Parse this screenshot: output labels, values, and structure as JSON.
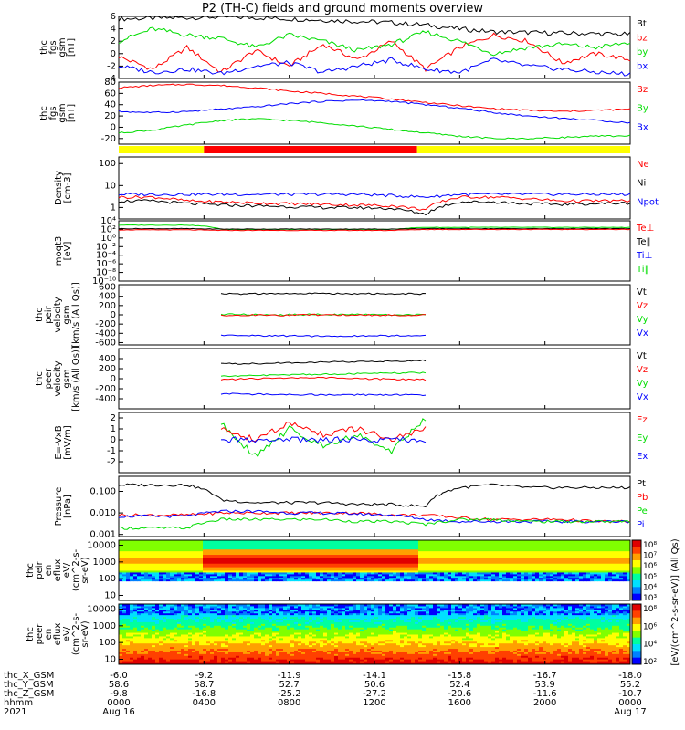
{
  "title": "P2 (TH-C) fields and ground moments overview",
  "colors": {
    "black": "#000000",
    "red": "#ff0000",
    "green": "#00dd00",
    "blue": "#0000ff",
    "yellow": "#ffff00"
  },
  "chart_data": [
    {
      "type": "line",
      "ylabel": [
        "thc",
        "fgs",
        "gsm",
        "[nT]"
      ],
      "ylim": [
        -4,
        6
      ],
      "yticks": [
        "6",
        "4",
        "2",
        "0",
        "-2",
        "-4"
      ],
      "legend": [
        {
          "label": "Bt",
          "color": "#000000"
        },
        {
          "label": "bz",
          "color": "#ff0000"
        },
        {
          "label": "by",
          "color": "#00dd00"
        },
        {
          "label": "bx",
          "color": "#0000ff"
        }
      ],
      "series": [
        {
          "color": "#000000",
          "values": [
            5.6,
            5.7,
            5.8,
            5.9,
            5.8,
            5.6,
            5.4,
            5.2,
            5.0,
            4.6,
            4.0,
            3.5,
            3.4,
            3.3,
            3.2,
            3.1
          ]
        },
        {
          "color": "#ff0000",
          "values": [
            -0.5,
            -2.5,
            1.0,
            -3.0,
            0.5,
            -2.0,
            1.5,
            -1.0,
            2.0,
            -2.5,
            1.0,
            3.0,
            2.0,
            -1.5,
            0.0,
            -1.0
          ]
        },
        {
          "color": "#00dd00",
          "values": [
            2.0,
            4.0,
            3.0,
            2.5,
            1.0,
            3.0,
            2.0,
            0.5,
            1.5,
            3.5,
            2.0,
            0.0,
            1.0,
            1.5,
            1.0,
            1.8
          ]
        },
        {
          "color": "#0000ff",
          "values": [
            -2.0,
            -3.0,
            -2.5,
            -3.2,
            -2.0,
            -1.5,
            -3.0,
            -2.0,
            -1.0,
            -2.5,
            -3.0,
            -1.0,
            -2.0,
            -2.5,
            -3.0,
            -3.3
          ]
        }
      ]
    },
    {
      "type": "line",
      "ylabel": [
        "thc",
        "fgs",
        "gsm",
        "[nT]"
      ],
      "ylim": [
        -30,
        80
      ],
      "yticks": [
        "80",
        "60",
        "40",
        "20",
        "0",
        "-20"
      ],
      "legend": [
        {
          "label": "Bz",
          "color": "#ff0000"
        },
        {
          "label": "By",
          "color": "#00dd00"
        },
        {
          "label": "Bx",
          "color": "#0000ff"
        }
      ],
      "series": [
        {
          "color": "#ff0000",
          "values": [
            70,
            74,
            76,
            74,
            70,
            64,
            60,
            55,
            50,
            44,
            38,
            33,
            30,
            28,
            30,
            32
          ]
        },
        {
          "color": "#00dd00",
          "values": [
            -10,
            -5,
            4,
            12,
            15,
            12,
            8,
            2,
            -4,
            -10,
            -16,
            -20,
            -20,
            -18,
            -16,
            -15
          ]
        },
        {
          "color": "#0000ff",
          "values": [
            28,
            26,
            28,
            32,
            36,
            42,
            46,
            48,
            46,
            40,
            34,
            26,
            20,
            16,
            12,
            8
          ]
        }
      ]
    },
    {
      "type": "heatmap",
      "name": "mode-bar",
      "segments": [
        {
          "from": "0000",
          "to": "0400",
          "color": "#ffff00"
        },
        {
          "from": "0400",
          "to": "1400",
          "color": "#ff0000"
        },
        {
          "from": "1400",
          "to": "0000",
          "color": "#ffff00"
        }
      ]
    },
    {
      "type": "line",
      "yscale": "log",
      "ylabel": [
        "Density",
        "[cm-3]"
      ],
      "ylim": [
        0.3,
        200
      ],
      "yticks": [
        "100",
        "10",
        "1"
      ],
      "legend": [
        {
          "label": "Ne",
          "color": "#ff0000"
        },
        {
          "label": "Ni",
          "color": "#000000"
        },
        {
          "label": "Npot",
          "color": "#0000ff"
        }
      ],
      "series": [
        {
          "color": "#0000ff",
          "values": [
            4,
            4,
            4,
            4,
            4,
            4,
            4,
            4,
            3.5,
            3,
            4,
            4,
            4,
            4,
            4,
            4
          ]
        },
        {
          "color": "#ff0000",
          "values": [
            3,
            3,
            2,
            1.8,
            1.6,
            1.5,
            1.4,
            1.3,
            1.2,
            0.8,
            3,
            3,
            2.5,
            2,
            2,
            2
          ]
        },
        {
          "color": "#000000",
          "values": [
            2,
            2,
            1.5,
            1.3,
            1.2,
            1.1,
            1.0,
            1.0,
            0.9,
            0.5,
            1.8,
            1.8,
            1.5,
            1.4,
            1.5,
            1.6
          ]
        }
      ]
    },
    {
      "type": "line",
      "yscale": "log",
      "ylabel": [
        "moqt3",
        "[eV]"
      ],
      "ylim": [
        1e-10,
        10000.0
      ],
      "yticks": [
        "10⁴",
        "10²",
        "10⁰",
        "10⁻²",
        "10⁻⁴",
        "10⁻⁶",
        "10⁻⁸",
        "10⁻¹⁰"
      ],
      "legend": [
        {
          "label": "Te⊥",
          "color": "#ff0000"
        },
        {
          "label": "Te‖",
          "color": "#000000"
        },
        {
          "label": "Ti⊥",
          "color": "#0000ff"
        },
        {
          "label": "Ti‖",
          "color": "#00dd00"
        }
      ],
      "series": [
        {
          "color": "#00dd00",
          "values": [
            1000,
            1000,
            1000,
            100,
            100,
            100,
            100,
            100,
            100,
            300,
            300,
            300,
            300,
            300,
            300,
            300
          ]
        },
        {
          "color": "#000000",
          "values": [
            150,
            150,
            150,
            120,
            120,
            120,
            120,
            120,
            120,
            150,
            150,
            150,
            150,
            150,
            150,
            150
          ]
        },
        {
          "color": "#ff0000",
          "values": [
            80,
            80,
            80,
            60,
            60,
            60,
            60,
            60,
            60,
            100,
            100,
            100,
            100,
            100,
            100,
            100
          ]
        }
      ]
    },
    {
      "type": "line",
      "ylabel": [
        "thc",
        "peir",
        "velocity",
        "gsm",
        "[km/s (All Qs)]"
      ],
      "ylim": [
        -650,
        650
      ],
      "yticks": [
        "600",
        "400",
        "200",
        "0",
        "-200",
        "-400",
        "-600"
      ],
      "legend": [
        {
          "label": "Vt",
          "color": "#000000"
        },
        {
          "label": "Vz",
          "color": "#ff0000"
        },
        {
          "label": "Vy",
          "color": "#00dd00"
        },
        {
          "label": "Vx",
          "color": "#0000ff"
        }
      ],
      "series": [
        {
          "color": "#000000",
          "values": [
            null,
            null,
            null,
            450,
            450,
            455,
            460,
            455,
            450,
            450,
            null,
            null,
            null,
            null,
            null,
            null
          ]
        },
        {
          "color": "#00dd00",
          "values": [
            null,
            null,
            null,
            10,
            5,
            0,
            10,
            5,
            0,
            5,
            null,
            null,
            null,
            null,
            null,
            null
          ]
        },
        {
          "color": "#ff0000",
          "values": [
            null,
            null,
            null,
            -10,
            -5,
            -10,
            0,
            -5,
            -10,
            -5,
            null,
            null,
            null,
            null,
            null,
            null
          ]
        },
        {
          "color": "#0000ff",
          "values": [
            null,
            null,
            null,
            -450,
            -450,
            -455,
            -460,
            -455,
            -450,
            -450,
            null,
            null,
            null,
            null,
            null,
            null
          ]
        }
      ]
    },
    {
      "type": "line",
      "ylabel": [
        "thc",
        "peer",
        "velocity",
        "gsm",
        "[km/s (All Qs)]"
      ],
      "ylim": [
        -600,
        600
      ],
      "yticks": [
        "400",
        "200",
        "0",
        "-200",
        "-400"
      ],
      "legend": [
        {
          "label": "Vt",
          "color": "#000000"
        },
        {
          "label": "Vz",
          "color": "#ff0000"
        },
        {
          "label": "Vy",
          "color": "#00dd00"
        },
        {
          "label": "Vx",
          "color": "#0000ff"
        }
      ],
      "series": [
        {
          "color": "#000000",
          "values": [
            null,
            null,
            null,
            300,
            300,
            320,
            330,
            340,
            350,
            360,
            null,
            null,
            null,
            null,
            null,
            null
          ]
        },
        {
          "color": "#00dd00",
          "values": [
            null,
            null,
            null,
            50,
            60,
            80,
            90,
            100,
            110,
            120,
            null,
            null,
            null,
            null,
            null,
            null
          ]
        },
        {
          "color": "#ff0000",
          "values": [
            null,
            null,
            null,
            -20,
            0,
            10,
            20,
            0,
            -10,
            -20,
            null,
            null,
            null,
            null,
            null,
            null
          ]
        },
        {
          "color": "#0000ff",
          "values": [
            null,
            null,
            null,
            -300,
            -310,
            -320,
            -320,
            -320,
            -320,
            -330,
            null,
            null,
            null,
            null,
            null,
            null
          ]
        }
      ]
    },
    {
      "type": "line",
      "ylabel": [
        "E=-VxB",
        "[mV/m]"
      ],
      "ylim": [
        -3,
        2.5
      ],
      "yticks": [
        "2",
        "1",
        "0",
        "-1",
        "-2"
      ],
      "legend": [
        {
          "label": "Ez",
          "color": "#ff0000"
        },
        {
          "label": "Ey",
          "color": "#00dd00"
        },
        {
          "label": "Ex",
          "color": "#0000ff"
        }
      ],
      "series": [
        {
          "color": "#00dd00",
          "values": [
            null,
            null,
            null,
            1.5,
            -1.5,
            1.0,
            -0.5,
            0.5,
            -1.0,
            2.0,
            null,
            null,
            null,
            null,
            null,
            null
          ]
        },
        {
          "color": "#ff0000",
          "values": [
            null,
            null,
            null,
            1.0,
            0.0,
            1.5,
            0.5,
            1.0,
            0.0,
            1.0,
            null,
            null,
            null,
            null,
            null,
            null
          ]
        },
        {
          "color": "#0000ff",
          "values": [
            null,
            null,
            null,
            0.0,
            0.0,
            0.0,
            0.0,
            0.0,
            0.0,
            0.0,
            null,
            null,
            null,
            null,
            null,
            null
          ]
        }
      ]
    },
    {
      "type": "line",
      "yscale": "log",
      "ylabel": [
        "Pressure",
        "[nPa]"
      ],
      "ylim": [
        0.0008,
        0.5
      ],
      "yticks": [
        "0.100",
        "0.010",
        "0.001"
      ],
      "legend": [
        {
          "label": "Pt",
          "color": "#000000"
        },
        {
          "label": "Pb",
          "color": "#ff0000"
        },
        {
          "label": "Pe",
          "color": "#00dd00"
        },
        {
          "label": "Pi",
          "color": "#0000ff"
        }
      ],
      "series": [
        {
          "color": "#000000",
          "values": [
            0.2,
            0.2,
            0.2,
            0.04,
            0.03,
            0.03,
            0.03,
            0.025,
            0.025,
            0.02,
            0.15,
            0.2,
            0.15,
            0.15,
            0.15,
            0.15
          ]
        },
        {
          "color": "#ff0000",
          "values": [
            0.008,
            0.008,
            0.008,
            0.01,
            0.01,
            0.01,
            0.01,
            0.01,
            0.008,
            0.008,
            0.006,
            0.005,
            0.005,
            0.005,
            0.004,
            0.004
          ]
        },
        {
          "color": "#0000ff",
          "values": [
            0.007,
            0.007,
            0.007,
            0.012,
            0.012,
            0.01,
            0.01,
            0.009,
            0.008,
            0.005,
            0.004,
            0.004,
            0.004,
            0.004,
            0.004,
            0.004
          ]
        },
        {
          "color": "#00dd00",
          "values": [
            0.002,
            0.002,
            0.002,
            0.005,
            0.005,
            0.005,
            0.005,
            0.004,
            0.004,
            0.003,
            0.005,
            0.005,
            0.004,
            0.004,
            0.004,
            0.004
          ]
        }
      ]
    },
    {
      "type": "heatmap",
      "ylabel": [
        "thc",
        "peir",
        "en",
        "eflux",
        "eV/",
        "(cm^2-s-",
        "sr-eV)"
      ],
      "yscale": "log",
      "ylim": [
        5,
        20000
      ],
      "yticks": [
        "10000",
        "1000",
        "100",
        "10"
      ],
      "colorbar_label": "[eV/(cm^2-s-sr-eV)] (All Qs)"
    },
    {
      "type": "heatmap",
      "ylabel": [
        "thc",
        "peer",
        "en",
        "eflux",
        "eV/",
        "(cm^2-s-",
        "sr-eV)"
      ],
      "yscale": "log",
      "ylim": [
        5,
        20000
      ],
      "yticks": [
        "10000",
        "1000",
        "100",
        "10"
      ],
      "colorbar_label": "[eV/(cm^2-s-sr-eV)]"
    }
  ],
  "colorbar_ticks": [
    "10⁸",
    "10⁷",
    "10⁶",
    "10⁵",
    "10⁴",
    "10³"
  ],
  "colorbar_ticks2": [
    "10⁸",
    "10⁶",
    "10⁴",
    "10²"
  ],
  "xaxis": {
    "row_labels": [
      "thc_X_GSM",
      "thc_Y_GSM",
      "thc_Z_GSM",
      "hhmm",
      "2021"
    ],
    "ticks": [
      {
        "x": "-6.0",
        "y": "58.6",
        "z": "-9.8",
        "hhmm": "0000",
        "date": "Aug 16"
      },
      {
        "x": "-9.2",
        "y": "58.7",
        "z": "-16.8",
        "hhmm": "0400",
        "date": ""
      },
      {
        "x": "-11.9",
        "y": "52.7",
        "z": "-25.2",
        "hhmm": "0800",
        "date": ""
      },
      {
        "x": "-14.1",
        "y": "50.6",
        "z": "-27.2",
        "hhmm": "1200",
        "date": ""
      },
      {
        "x": "-15.8",
        "y": "52.4",
        "z": "-20.6",
        "hhmm": "1600",
        "date": ""
      },
      {
        "x": "-16.7",
        "y": "53.9",
        "z": "-11.6",
        "hhmm": "2000",
        "date": ""
      },
      {
        "x": "-18.0",
        "y": "55.2",
        "z": "-10.7",
        "hhmm": "0000",
        "date": "Aug 17"
      }
    ]
  }
}
